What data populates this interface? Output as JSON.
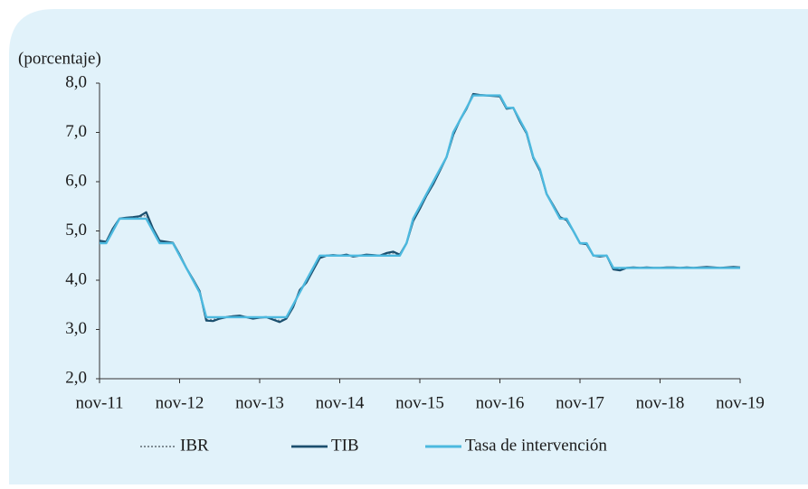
{
  "chart_data": {
    "type": "line",
    "y_label": "(porcentaje)",
    "x": [
      "2011-11",
      "2011-12",
      "2012-01",
      "2012-02",
      "2012-03",
      "2012-04",
      "2012-05",
      "2012-06",
      "2012-07",
      "2012-08",
      "2012-09",
      "2012-10",
      "2012-11",
      "2012-12",
      "2013-01",
      "2013-02",
      "2013-03",
      "2013-04",
      "2013-05",
      "2013-06",
      "2013-07",
      "2013-08",
      "2013-09",
      "2013-10",
      "2013-11",
      "2013-12",
      "2014-01",
      "2014-02",
      "2014-03",
      "2014-04",
      "2014-05",
      "2014-06",
      "2014-07",
      "2014-08",
      "2014-09",
      "2014-10",
      "2014-11",
      "2014-12",
      "2015-01",
      "2015-02",
      "2015-03",
      "2015-04",
      "2015-05",
      "2015-06",
      "2015-07",
      "2015-08",
      "2015-09",
      "2015-10",
      "2015-11",
      "2015-12",
      "2016-01",
      "2016-02",
      "2016-03",
      "2016-04",
      "2016-05",
      "2016-06",
      "2016-07",
      "2016-08",
      "2016-09",
      "2016-10",
      "2016-11",
      "2016-12",
      "2017-01",
      "2017-02",
      "2017-03",
      "2017-04",
      "2017-05",
      "2017-06",
      "2017-07",
      "2017-08",
      "2017-09",
      "2017-10",
      "2017-11",
      "2017-12",
      "2018-01",
      "2018-02",
      "2018-03",
      "2018-04",
      "2018-05",
      "2018-06",
      "2018-07",
      "2018-08",
      "2018-09",
      "2018-10",
      "2018-11",
      "2018-12",
      "2019-01",
      "2019-02",
      "2019-03",
      "2019-04",
      "2019-05",
      "2019-06",
      "2019-07",
      "2019-08",
      "2019-09",
      "2019-10",
      "2019-11"
    ],
    "series": [
      {
        "name": "IBR",
        "color": "#7f8c94",
        "values": [
          4.78,
          4.77,
          5.02,
          5.24,
          5.26,
          5.27,
          5.28,
          5.32,
          5.03,
          4.78,
          4.77,
          4.76,
          4.5,
          4.26,
          4.0,
          3.76,
          3.2,
          3.2,
          3.23,
          3.25,
          3.26,
          3.27,
          3.25,
          3.23,
          3.24,
          3.25,
          3.22,
          3.18,
          3.22,
          3.47,
          3.78,
          3.97,
          4.22,
          4.47,
          4.5,
          4.5,
          4.5,
          4.51,
          4.49,
          4.5,
          4.51,
          4.5,
          4.5,
          4.53,
          4.55,
          4.51,
          4.74,
          5.22,
          5.47,
          5.73,
          5.97,
          6.23,
          6.5,
          6.97,
          7.25,
          7.49,
          7.76,
          7.75,
          7.75,
          7.74,
          7.73,
          7.49,
          7.5,
          7.23,
          6.99,
          6.49,
          6.23,
          5.75,
          5.51,
          5.27,
          5.23,
          5.0,
          4.75,
          4.74,
          4.5,
          4.49,
          4.5,
          4.23,
          4.21,
          4.24,
          4.25,
          4.25,
          4.25,
          4.25,
          4.25,
          4.25,
          4.25,
          4.25,
          4.26,
          4.25,
          4.25,
          4.26,
          4.25,
          4.25,
          4.26,
          4.26,
          4.25
        ]
      },
      {
        "name": "TIB",
        "color": "#1b4f6e",
        "values": [
          4.8,
          4.78,
          5.05,
          5.25,
          5.27,
          5.28,
          5.3,
          5.38,
          5.05,
          4.8,
          4.78,
          4.76,
          4.52,
          4.25,
          4.02,
          3.78,
          3.18,
          3.17,
          3.22,
          3.25,
          3.27,
          3.28,
          3.25,
          3.22,
          3.24,
          3.25,
          3.2,
          3.15,
          3.22,
          3.45,
          3.8,
          3.95,
          4.2,
          4.45,
          4.5,
          4.51,
          4.5,
          4.52,
          4.48,
          4.5,
          4.52,
          4.51,
          4.5,
          4.55,
          4.58,
          4.52,
          4.75,
          5.2,
          5.45,
          5.72,
          5.95,
          6.22,
          6.5,
          6.95,
          7.25,
          7.48,
          7.78,
          7.76,
          7.75,
          7.74,
          7.73,
          7.48,
          7.5,
          7.22,
          6.98,
          6.48,
          6.22,
          5.75,
          5.52,
          5.28,
          5.22,
          5.0,
          4.75,
          4.73,
          4.5,
          4.48,
          4.5,
          4.22,
          4.2,
          4.25,
          4.26,
          4.25,
          4.26,
          4.25,
          4.25,
          4.26,
          4.26,
          4.25,
          4.26,
          4.25,
          4.26,
          4.27,
          4.26,
          4.25,
          4.26,
          4.27,
          4.26
        ]
      },
      {
        "name": "Tasa de intervención",
        "color": "#4cb9df",
        "values": [
          4.75,
          4.75,
          5.0,
          5.25,
          5.25,
          5.25,
          5.25,
          5.25,
          5.0,
          4.75,
          4.75,
          4.75,
          4.5,
          4.25,
          4.0,
          3.75,
          3.25,
          3.25,
          3.25,
          3.25,
          3.25,
          3.25,
          3.25,
          3.25,
          3.25,
          3.25,
          3.25,
          3.25,
          3.25,
          3.5,
          3.75,
          4.0,
          4.25,
          4.5,
          4.5,
          4.5,
          4.5,
          4.5,
          4.5,
          4.5,
          4.5,
          4.5,
          4.5,
          4.5,
          4.5,
          4.5,
          4.75,
          5.25,
          5.5,
          5.75,
          6.0,
          6.25,
          6.5,
          7.0,
          7.25,
          7.5,
          7.75,
          7.75,
          7.75,
          7.75,
          7.75,
          7.5,
          7.5,
          7.25,
          7.0,
          6.5,
          6.25,
          5.75,
          5.5,
          5.25,
          5.25,
          5.0,
          4.75,
          4.75,
          4.5,
          4.5,
          4.5,
          4.25,
          4.25,
          4.25,
          4.25,
          4.25,
          4.25,
          4.25,
          4.25,
          4.25,
          4.25,
          4.25,
          4.25,
          4.25,
          4.25,
          4.25,
          4.25,
          4.25,
          4.25,
          4.25,
          4.25
        ]
      }
    ],
    "xlim": [
      "2011-11",
      "2019-11"
    ],
    "xticks": [
      {
        "value": "2011-11",
        "label": "nov-11"
      },
      {
        "value": "2012-11",
        "label": "nov-12"
      },
      {
        "value": "2013-11",
        "label": "nov-13"
      },
      {
        "value": "2014-11",
        "label": "nov-14"
      },
      {
        "value": "2015-11",
        "label": "nov-15"
      },
      {
        "value": "2016-11",
        "label": "nov-16"
      },
      {
        "value": "2017-11",
        "label": "nov-17"
      },
      {
        "value": "2018-11",
        "label": "nov-18"
      },
      {
        "value": "2019-11",
        "label": "nov-19"
      }
    ],
    "ylim": [
      2,
      8
    ],
    "yticks": [
      {
        "value": 2,
        "label": "2,0"
      },
      {
        "value": 3,
        "label": "3,0"
      },
      {
        "value": 4,
        "label": "4,0"
      },
      {
        "value": 5,
        "label": "5,0"
      },
      {
        "value": 6,
        "label": "6,0"
      },
      {
        "value": 7,
        "label": "7,0"
      },
      {
        "value": 8,
        "label": "8,0"
      }
    ],
    "grid": false
  }
}
